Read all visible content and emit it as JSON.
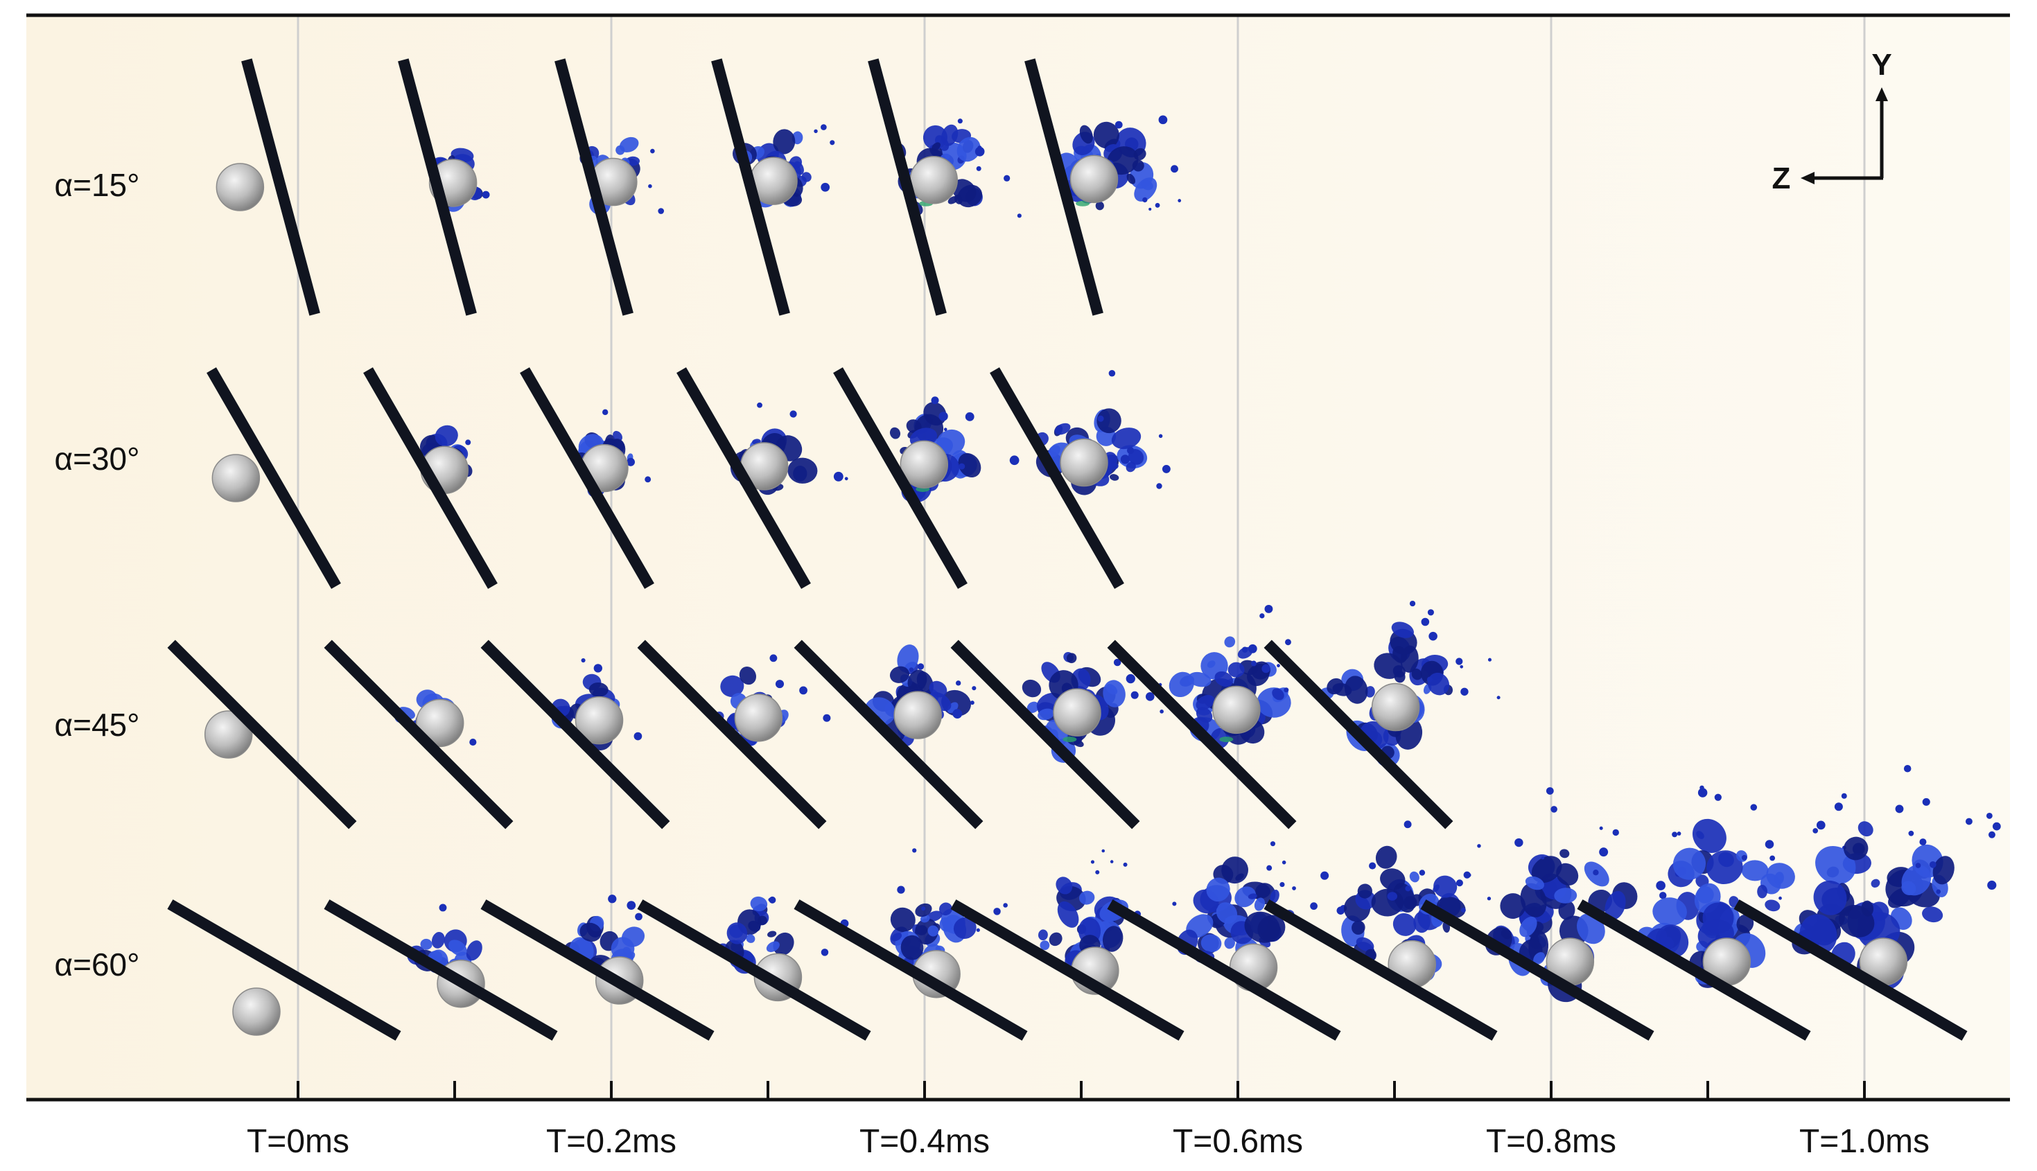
{
  "figure": {
    "row_labels": [
      "α=15°",
      "α=30°",
      "α=45°",
      "α=60°"
    ],
    "time_labels": [
      "T=0ms",
      "T=0.2ms",
      "T=0.4ms",
      "T=0.6ms",
      "T=0.8ms",
      "T=1.0ms"
    ],
    "axes": {
      "y_label": "Y",
      "z_label": "Z"
    },
    "frames_per_row": [
      6,
      6,
      8,
      11
    ],
    "frame_interval_ms": 0.1,
    "colors": {
      "background": "#fdf8ec",
      "plate": "#10141f",
      "splash": "#1a2fb8",
      "splash_dark": "#0f1c80",
      "splash_light": "#3355e0",
      "splash_accent": "#2aa36a",
      "droplet": "#bdbdbd",
      "gridline": "#cfcfcf",
      "axis": "#111111"
    }
  }
}
